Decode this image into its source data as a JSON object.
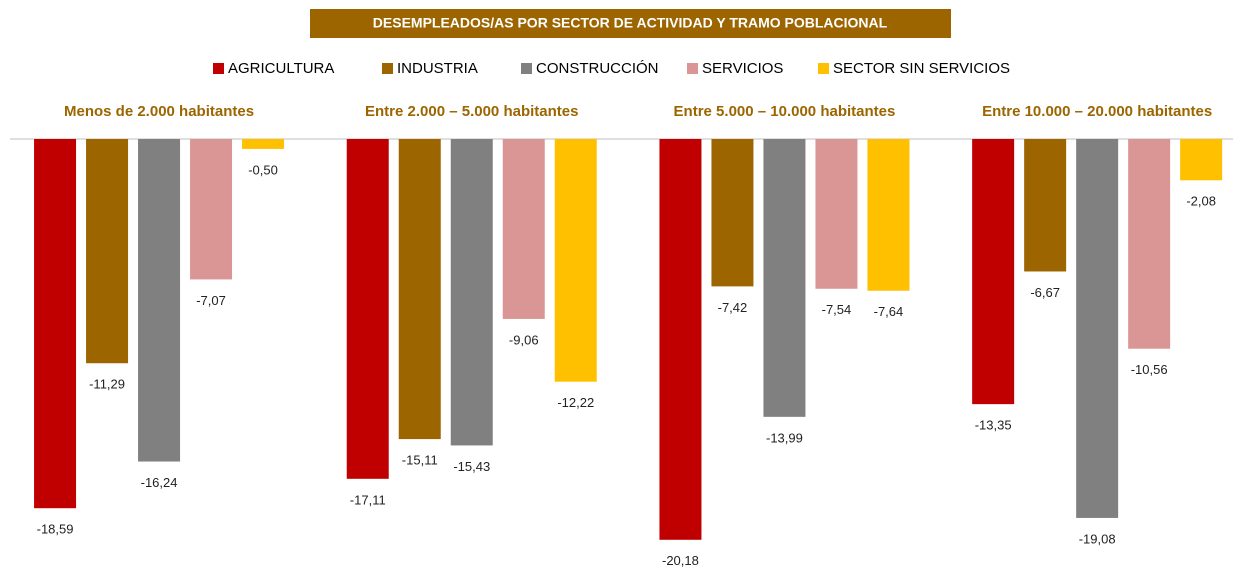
{
  "chart_data": {
    "type": "bar",
    "title": "DESEMPLEADOS/AS POR SECTOR DE ACTIVIDAD Y  TRAMO POBLACIONAL",
    "categories": [
      "Menos de 2.000 habitantes",
      "Entre 2.000 – 5.000 habitantes",
      "Entre 5.000 – 10.000 habitantes",
      "Entre 10.000 – 20.000 habitantes"
    ],
    "series": [
      {
        "name": "AGRICULTURA",
        "color": "#c00000",
        "values": [
          -18.59,
          -17.11,
          -20.18,
          -13.35
        ],
        "value_labels": [
          "-18,59",
          "-17,11",
          "-20,18",
          "-13,35"
        ]
      },
      {
        "name": "INDUSTRIA",
        "color": "#9c6500",
        "values": [
          -11.29,
          -15.11,
          -7.42,
          -6.67
        ],
        "value_labels": [
          "-11,29",
          "-15,11",
          "-7,42",
          "-6,67"
        ]
      },
      {
        "name": "CONSTRUCCIÓN",
        "color": "#808080",
        "values": [
          -16.24,
          -15.43,
          -13.99,
          -19.08
        ],
        "value_labels": [
          "-16,24",
          "-15,43",
          "-13,99",
          "-19,08"
        ]
      },
      {
        "name": "SERVICIOS",
        "color": "#d99694",
        "values": [
          -7.07,
          -9.06,
          -7.54,
          -10.56
        ],
        "value_labels": [
          "-7,07",
          "-9,06",
          "-7,54",
          "-10,56"
        ]
      },
      {
        "name": "SECTOR SIN SERVICIOS",
        "color": "#ffc000",
        "values": [
          -0.5,
          -12.22,
          -7.64,
          -2.08
        ],
        "value_labels": [
          "-0,50",
          "-12,22",
          "-7,64",
          "-2,08"
        ]
      }
    ],
    "ylim": [
      -21.5,
      0
    ]
  }
}
